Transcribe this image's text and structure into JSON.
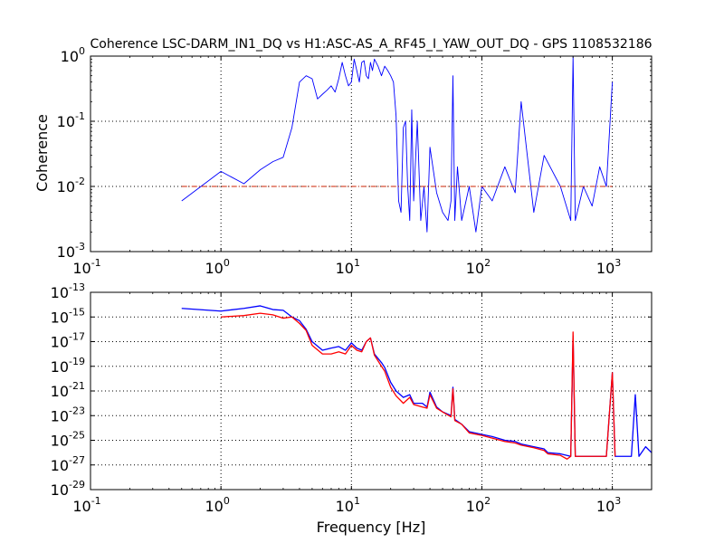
{
  "chart_data": [
    {
      "type": "line",
      "title": "Coherence LSC-DARM_IN1_DQ vs H1:ASC-AS_A_RF45_I_YAW_OUT_DQ - GPS 1108532186",
      "xlabel": "",
      "ylabel": "Coherence",
      "xscale": "log",
      "yscale": "log",
      "xlim": [
        0.1,
        2000
      ],
      "ylim": [
        0.001,
        1
      ],
      "grid": true,
      "x_tick_labels": [
        {
          "base": "10",
          "exp": "-1"
        },
        {
          "base": "10",
          "exp": "0"
        },
        {
          "base": "10",
          "exp": "1"
        },
        {
          "base": "10",
          "exp": "2"
        },
        {
          "base": "10",
          "exp": "3"
        }
      ],
      "y_tick_labels": [
        {
          "base": "10",
          "exp": "-3"
        },
        {
          "base": "10",
          "exp": "-2"
        },
        {
          "base": "10",
          "exp": "-1"
        },
        {
          "base": "10",
          "exp": "0"
        }
      ],
      "series": [
        {
          "color": "#0000ff",
          "x": [
            0.5,
            1.0,
            1.5,
            2.0,
            2.5,
            3.0,
            3.5,
            4.0,
            4.5,
            5.0,
            5.5,
            6.0,
            6.5,
            7.0,
            7.5,
            8.0,
            8.5,
            9.0,
            9.5,
            10.0,
            10.5,
            11.0,
            11.5,
            12.0,
            12.5,
            13.0,
            13.5,
            14.0,
            14.5,
            15.0,
            16.0,
            17.0,
            18.0,
            19.0,
            20.0,
            21.0,
            22.0,
            23.0,
            24.0,
            25.0,
            26.0,
            27.0,
            28.0,
            29.0,
            30.0,
            32.0,
            34.0,
            36.0,
            38.0,
            40.0,
            45.0,
            50.0,
            55.0,
            58.0,
            60.0,
            62.0,
            65.0,
            70.0,
            80.0,
            90.0,
            100.0,
            120.0,
            150.0,
            180.0,
            200.0,
            250.0,
            300.0,
            400.0,
            480.0,
            500.0,
            520.0,
            600.0,
            700.0,
            800.0,
            900.0,
            1000.0
          ],
          "y": [
            0.006,
            0.017,
            0.011,
            0.018,
            0.024,
            0.028,
            0.08,
            0.4,
            0.5,
            0.45,
            0.22,
            0.26,
            0.3,
            0.35,
            0.28,
            0.45,
            0.8,
            0.5,
            0.35,
            0.4,
            0.9,
            0.6,
            0.4,
            0.8,
            0.85,
            0.5,
            0.45,
            0.8,
            0.6,
            0.9,
            0.7,
            0.5,
            0.7,
            0.6,
            0.5,
            0.4,
            0.12,
            0.006,
            0.004,
            0.08,
            0.1,
            0.01,
            0.003,
            0.15,
            0.006,
            0.1,
            0.003,
            0.01,
            0.002,
            0.04,
            0.008,
            0.004,
            0.003,
            0.006,
            0.5,
            0.003,
            0.02,
            0.003,
            0.01,
            0.002,
            0.01,
            0.006,
            0.02,
            0.008,
            0.2,
            0.004,
            0.03,
            0.01,
            0.003,
            1.0,
            0.003,
            0.01,
            0.005,
            0.02,
            0.01,
            0.4
          ]
        },
        {
          "color": "#cc2200",
          "style": "dash-dot",
          "x": [
            0.5,
            1000.0
          ],
          "y": [
            0.01,
            0.01
          ]
        }
      ]
    },
    {
      "type": "line",
      "title": "",
      "xlabel": "Frequency [Hz]",
      "ylabel": "",
      "xscale": "log",
      "yscale": "log",
      "xlim": [
        0.1,
        2000
      ],
      "ylim": [
        1e-29,
        1e-13
      ],
      "grid": true,
      "x_tick_labels": [
        {
          "base": "10",
          "exp": "-1"
        },
        {
          "base": "10",
          "exp": "0"
        },
        {
          "base": "10",
          "exp": "1"
        },
        {
          "base": "10",
          "exp": "2"
        },
        {
          "base": "10",
          "exp": "3"
        }
      ],
      "y_tick_labels": [
        {
          "base": "10",
          "exp": "-29"
        },
        {
          "base": "10",
          "exp": "-27"
        },
        {
          "base": "10",
          "exp": "-25"
        },
        {
          "base": "10",
          "exp": "-23"
        },
        {
          "base": "10",
          "exp": "-21"
        },
        {
          "base": "10",
          "exp": "-19"
        },
        {
          "base": "10",
          "exp": "-17"
        },
        {
          "base": "10",
          "exp": "-15"
        },
        {
          "base": "10",
          "exp": "-13"
        }
      ],
      "series": [
        {
          "color": "#0000ff",
          "x": [
            0.5,
            1.0,
            1.5,
            2.0,
            2.5,
            3.0,
            3.5,
            4.0,
            4.5,
            5.0,
            6.0,
            7.0,
            8.0,
            9.0,
            10.0,
            11.0,
            12.0,
            13.0,
            14.0,
            15.0,
            17.0,
            18.0,
            20.0,
            22.0,
            25.0,
            28.0,
            30.0,
            35.0,
            38.0,
            40.0,
            45.0,
            50.0,
            58.0,
            60.0,
            62.0,
            70.0,
            80.0,
            100.0,
            120.0,
            150.0,
            180.0,
            200.0,
            250.0,
            300.0,
            320.0,
            400.0,
            480.0,
            500.0,
            520.0,
            600.0,
            700.0,
            800.0,
            900.0,
            1000.0,
            1050.0,
            1200.0,
            1400.0,
            1500.0,
            1600.0,
            1800.0,
            2000.0
          ],
          "y": [
            5e-15,
            3e-15,
            5e-15,
            8e-15,
            4e-15,
            3.5e-15,
            1e-15,
            5e-16,
            1e-16,
            1e-17,
            2e-18,
            3e-18,
            4e-18,
            2e-18,
            8e-18,
            3e-18,
            2e-18,
            1e-17,
            2e-17,
            1e-18,
            2e-19,
            8e-20,
            5e-21,
            1e-21,
            3e-22,
            5e-22,
            1e-22,
            1e-22,
            5e-23,
            8e-22,
            5e-23,
            2e-23,
            1e-23,
            2e-21,
            5e-24,
            2e-24,
            5e-25,
            3e-25,
            2e-25,
            1e-25,
            8e-26,
            5e-26,
            3e-26,
            2e-26,
            1e-26,
            8e-27,
            5e-27,
            3e-17,
            5e-27,
            5e-27,
            5e-27,
            5e-27,
            5e-27,
            3e-20,
            5e-27,
            5e-27,
            5e-27,
            5e-22,
            5e-27,
            3e-26,
            1e-26
          ]
        },
        {
          "color": "#ff0000",
          "x": [
            1.0,
            1.5,
            2.0,
            2.5,
            3.0,
            3.5,
            4.0,
            4.5,
            5.0,
            6.0,
            7.0,
            8.0,
            9.0,
            10.0,
            11.0,
            12.0,
            13.0,
            14.0,
            15.0,
            17.0,
            18.0,
            20.0,
            22.0,
            25.0,
            28.0,
            30.0,
            35.0,
            38.0,
            40.0,
            45.0,
            50.0,
            58.0,
            60.0,
            62.0,
            70.0,
            80.0,
            100.0,
            120.0,
            150.0,
            180.0,
            200.0,
            250.0,
            300.0,
            320.0,
            400.0,
            450.0,
            480.0,
            500.0,
            520.0,
            600.0,
            700.0,
            800.0,
            900.0,
            1000.0,
            1050.0
          ],
          "y": [
            1e-15,
            1.3e-15,
            2e-15,
            1.5e-15,
            8e-16,
            1e-15,
            3e-16,
            8e-17,
            5e-18,
            1e-18,
            1e-18,
            1.5e-18,
            1e-18,
            5e-18,
            2e-18,
            1.5e-18,
            1e-17,
            2e-17,
            8e-19,
            1e-19,
            4e-20,
            2e-21,
            4e-22,
            1e-22,
            3e-22,
            8e-23,
            5e-23,
            4e-23,
            5e-22,
            4e-23,
            2e-23,
            8e-24,
            1.5e-21,
            4e-24,
            2e-24,
            4e-25,
            2.5e-25,
            1.5e-25,
            8e-26,
            6e-26,
            4e-26,
            2.5e-26,
            1.5e-26,
            8e-27,
            6e-27,
            3e-27,
            5e-27,
            6e-17,
            5e-27,
            5e-27,
            5e-27,
            5e-27,
            5e-27,
            3e-20,
            5e-27
          ]
        }
      ]
    }
  ]
}
